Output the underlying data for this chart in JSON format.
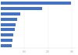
{
  "values": [
    297.8,
    176.4,
    84.0,
    70.0,
    62.0,
    58.0,
    54.0,
    50.0,
    45.0
  ],
  "bar_color": "#4472c4",
  "background_color": "#ffffff",
  "xlim": [
    0,
    320
  ],
  "bar_height": 0.6,
  "xtick_positions": [
    100,
    200,
    300
  ],
  "figsize": [
    1.0,
    0.71
  ],
  "dpi": 100
}
